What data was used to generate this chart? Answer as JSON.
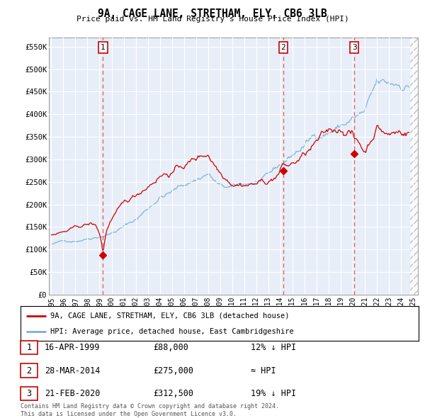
{
  "title": "9A, CAGE LANE, STRETHAM, ELY, CB6 3LB",
  "subtitle": "Price paid vs. HM Land Registry's House Price Index (HPI)",
  "yticks": [
    0,
    50000,
    100000,
    150000,
    200000,
    250000,
    300000,
    350000,
    400000,
    450000,
    500000,
    550000
  ],
  "ytick_labels": [
    "£0",
    "£50K",
    "£100K",
    "£150K",
    "£200K",
    "£250K",
    "£300K",
    "£350K",
    "£400K",
    "£450K",
    "£500K",
    "£550K"
  ],
  "sale_dates": [
    1999.29,
    2014.23,
    2020.13
  ],
  "sale_prices": [
    88000,
    275000,
    312500
  ],
  "sale_labels": [
    "1",
    "2",
    "3"
  ],
  "sale_date_strs": [
    "16-APR-1999",
    "28-MAR-2014",
    "21-FEB-2020"
  ],
  "sale_price_strs": [
    "£88,000",
    "£275,000",
    "£312,500"
  ],
  "sale_hpi_strs": [
    "12% ↓ HPI",
    "≈ HPI",
    "19% ↓ HPI"
  ],
  "property_line_color": "#cc0000",
  "hpi_line_color": "#7bafd4",
  "vline_color": "#dd5555",
  "background_color": "#e8eef8",
  "legend_label_property": "9A, CAGE LANE, STRETHAM, ELY, CB6 3LB (detached house)",
  "legend_label_hpi": "HPI: Average price, detached house, East Cambridgeshire",
  "footer": "Contains HM Land Registry data © Crown copyright and database right 2024.\nThis data is licensed under the Open Government Licence v3.0."
}
